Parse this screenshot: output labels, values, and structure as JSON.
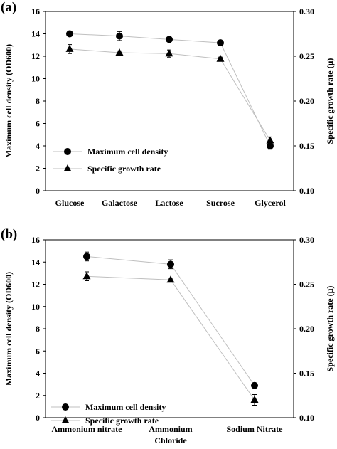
{
  "chart_data": [
    {
      "panel_label": "(a)",
      "type": "line",
      "categories": [
        "Glucose",
        "Galactose",
        "Lactose",
        "Sucrose",
        "Glycerol"
      ],
      "ylabel": "Maximum cell density (OD600)",
      "ylim": [
        0,
        16
      ],
      "yticks": [
        "0",
        "2",
        "4",
        "6",
        "8",
        "10",
        "12",
        "14",
        "16"
      ],
      "y2label": "Specific growth rate (μ)",
      "y2lim": [
        0.1,
        0.3
      ],
      "y2ticks": [
        "0.10",
        "0.15",
        "0.20",
        "0.25",
        "0.30"
      ],
      "grid": false,
      "legend_position": "lower-left",
      "series": [
        {
          "name": "Maximum cell density",
          "marker": "circle",
          "axis": "left",
          "values": [
            14.0,
            13.8,
            13.5,
            13.2,
            4.0
          ],
          "errors": [
            0.0,
            0.4,
            0.0,
            0.0,
            0.3
          ]
        },
        {
          "name": "Specific growth rate",
          "marker": "triangle",
          "axis": "right",
          "values": [
            0.258,
            0.254,
            0.253,
            0.247,
            0.156
          ],
          "errors": [
            0.005,
            0.002,
            0.004,
            0.002,
            0.004
          ]
        }
      ]
    },
    {
      "panel_label": "(b)",
      "type": "line",
      "categories": [
        "Ammonium nitrate",
        "Ammonium Chloride",
        "Sodium Nitrate"
      ],
      "ylabel": "Maximum cell density (OD600)",
      "ylim": [
        0,
        16
      ],
      "yticks": [
        "0",
        "2",
        "4",
        "6",
        "8",
        "10",
        "12",
        "14",
        "16"
      ],
      "y2label": "Specific growth rate (μ)",
      "y2lim": [
        0.1,
        0.3
      ],
      "y2ticks": [
        "0.10",
        "0.15",
        "0.20",
        "0.25",
        "0.30"
      ],
      "grid": false,
      "legend_position": "lower-left",
      "series": [
        {
          "name": "Maximum cell density",
          "marker": "circle",
          "axis": "left",
          "values": [
            14.5,
            13.8,
            2.9
          ],
          "errors": [
            0.4,
            0.4,
            0.0
          ]
        },
        {
          "name": "Specific growth rate",
          "marker": "triangle",
          "axis": "right",
          "values": [
            0.259,
            0.255,
            0.12
          ],
          "errors": [
            0.005,
            0.002,
            0.006
          ]
        }
      ]
    }
  ]
}
